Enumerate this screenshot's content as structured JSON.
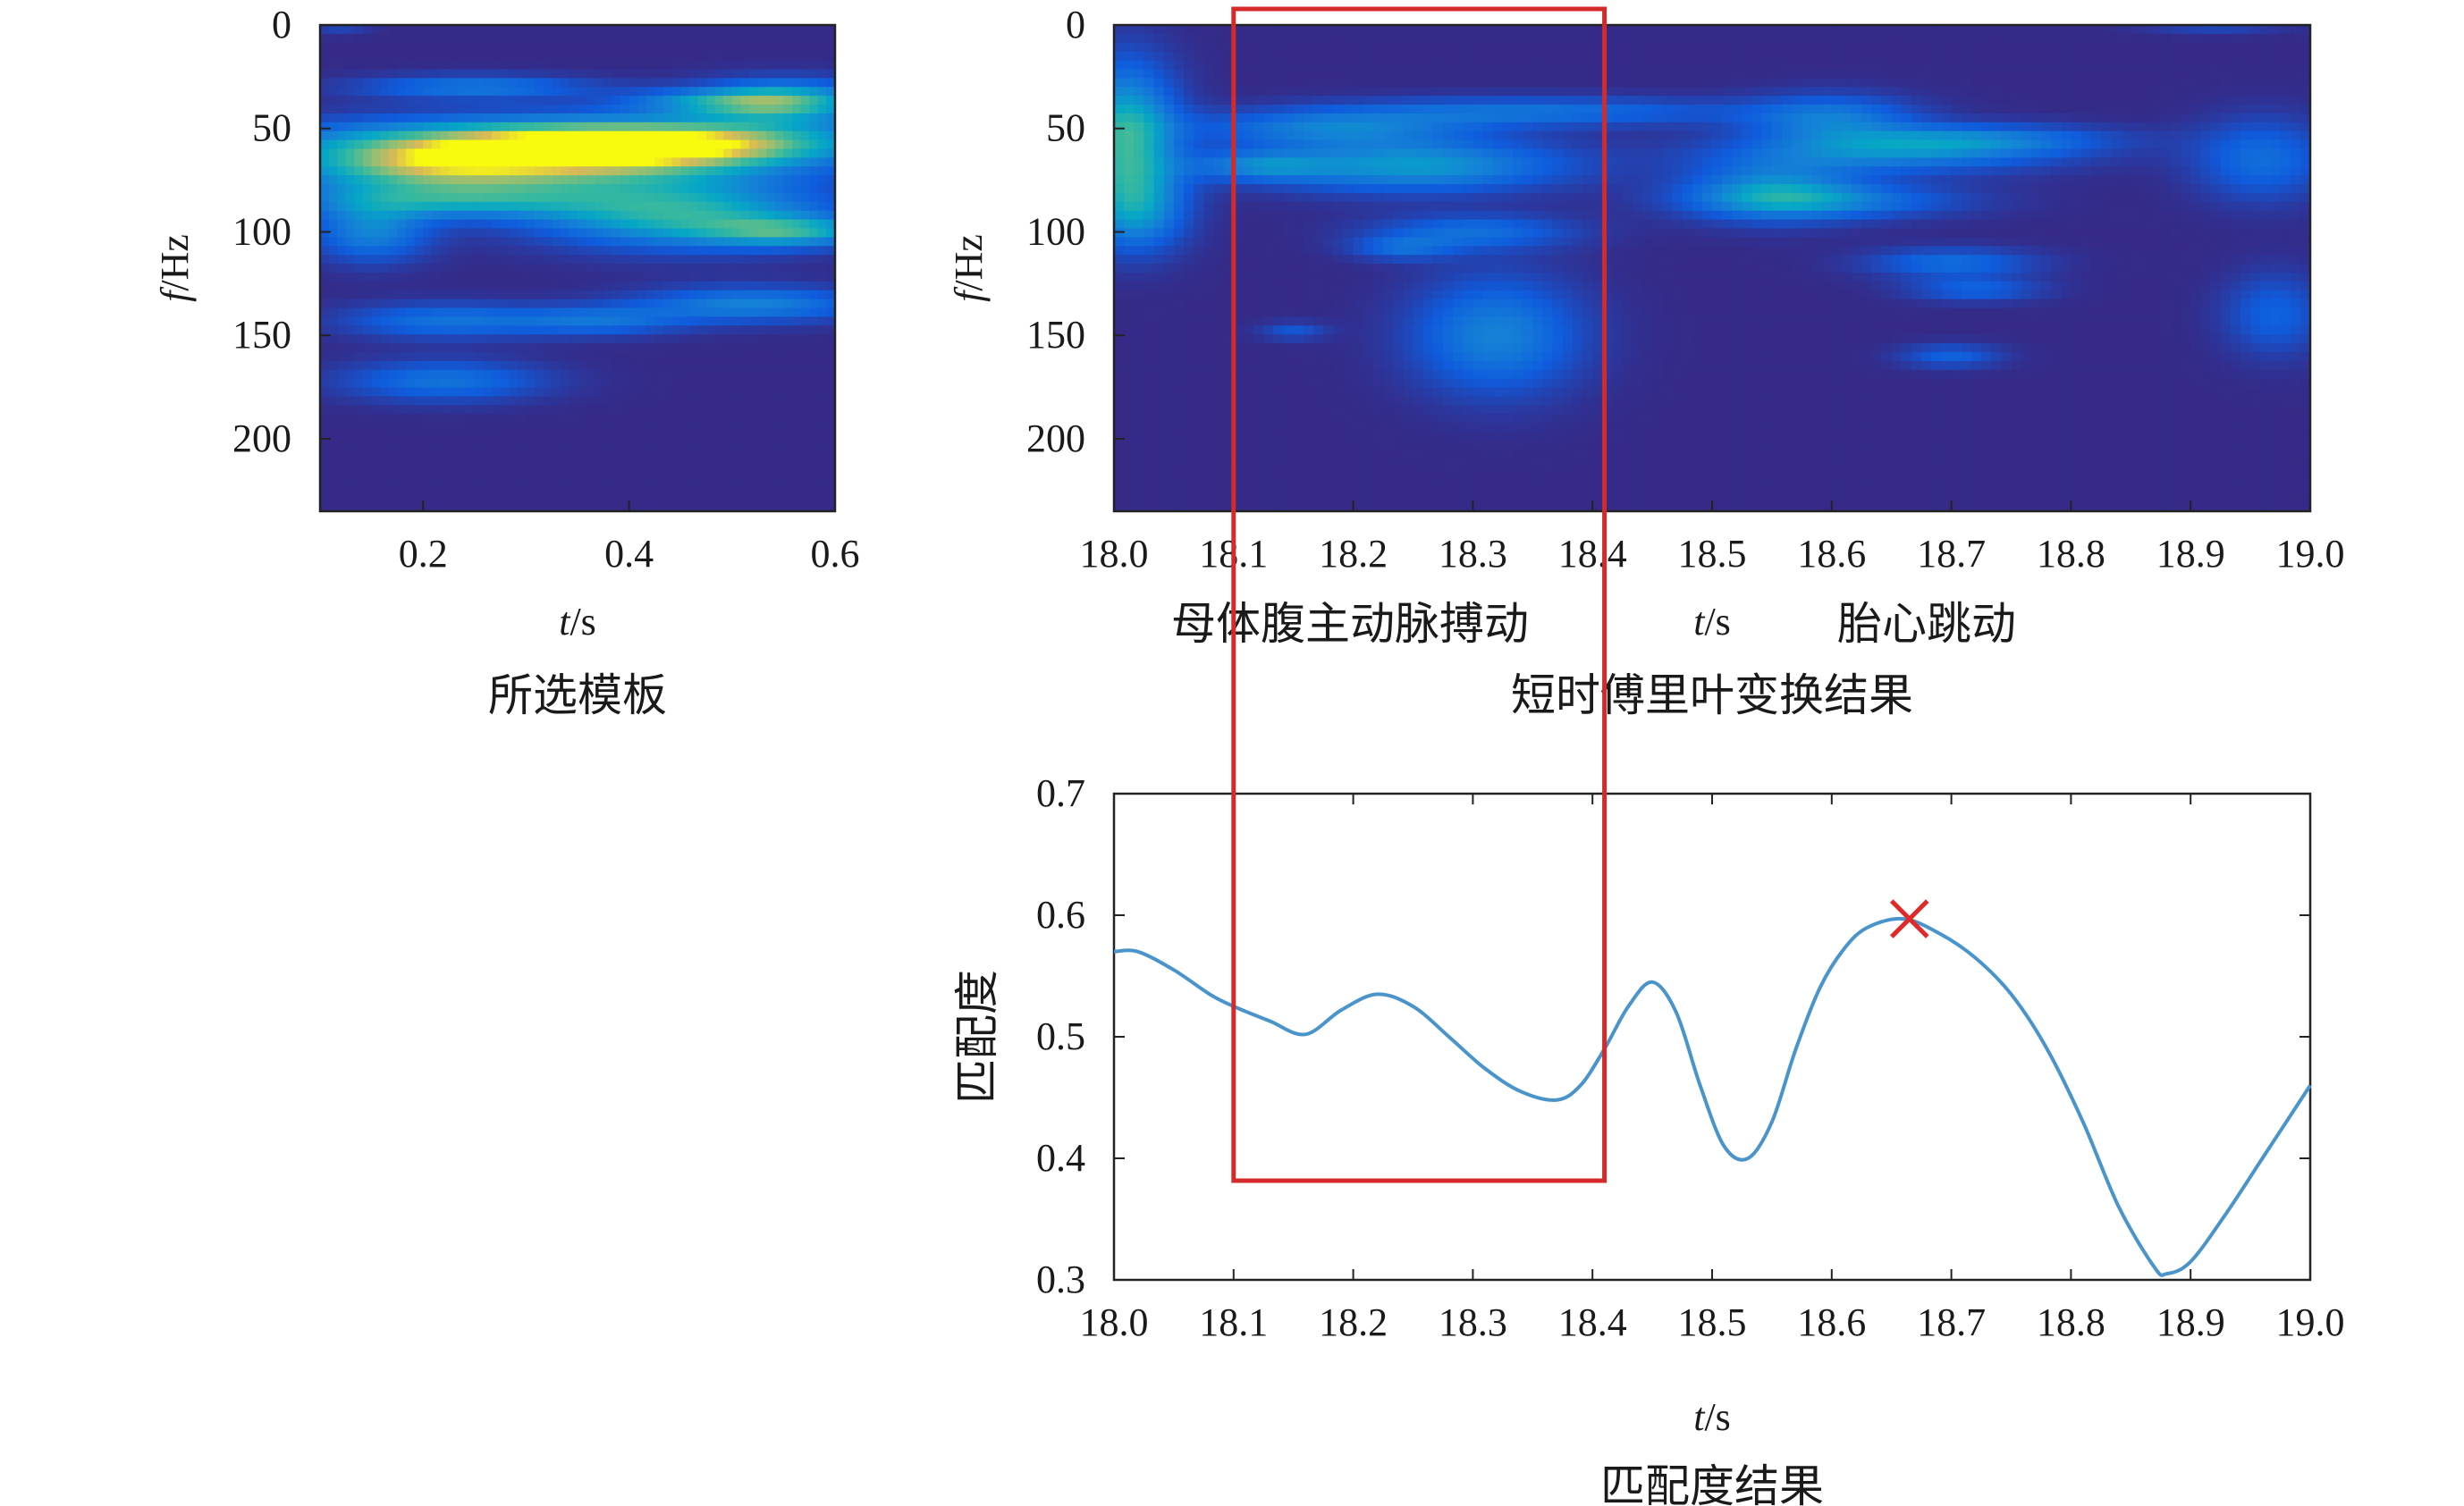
{
  "chart_data": [
    {
      "type": "heatmap",
      "caption": "所选模板",
      "xlabel_italic": "t",
      "xlabel_unit": "/s",
      "ylabel_italic": "f",
      "ylabel_unit": "/Hz",
      "xlim": [
        0.1,
        0.6
      ],
      "ylim": [
        0,
        235
      ],
      "y_inverted": true,
      "xticks": [
        0.2,
        0.4,
        0.6
      ],
      "xtick_labels": [
        "0.2",
        "0.4",
        "0.6"
      ],
      "yticks": [
        0,
        50,
        100,
        150,
        200
      ],
      "ytick_labels": [
        "0",
        "50",
        "100",
        "150",
        "200"
      ],
      "colormap": "parula",
      "background_color": "#352a87",
      "blobs": [
        {
          "t": 0.3,
          "f": 65,
          "dt": 0.16,
          "df": 12,
          "v": 0.75
        },
        {
          "t": 0.2,
          "f": 68,
          "dt": 0.08,
          "df": 8,
          "v": 0.3
        },
        {
          "t": 0.45,
          "f": 58,
          "dt": 0.12,
          "df": 8,
          "v": 0.55
        },
        {
          "t": 0.35,
          "f": 55,
          "dt": 0.2,
          "df": 7,
          "v": 0.3
        },
        {
          "t": 0.55,
          "f": 37,
          "dt": 0.06,
          "df": 7,
          "v": 0.65
        },
        {
          "t": 0.47,
          "f": 37,
          "dt": 0.06,
          "df": 4,
          "v": 0.3
        },
        {
          "t": 0.45,
          "f": 92,
          "dt": 0.1,
          "df": 11,
          "v": 0.6
        },
        {
          "t": 0.56,
          "f": 100,
          "dt": 0.06,
          "df": 5,
          "v": 0.45
        },
        {
          "t": 0.22,
          "f": 85,
          "dt": 0.1,
          "df": 6,
          "v": 0.4
        },
        {
          "t": 0.15,
          "f": 100,
          "dt": 0.04,
          "df": 10,
          "v": 0.4
        },
        {
          "t": 0.25,
          "f": 30,
          "dt": 0.08,
          "df": 4,
          "v": 0.35
        },
        {
          "t": 0.52,
          "f": 135,
          "dt": 0.08,
          "df": 6,
          "v": 0.4
        },
        {
          "t": 0.22,
          "f": 143,
          "dt": 0.07,
          "df": 6,
          "v": 0.32
        },
        {
          "t": 0.37,
          "f": 143,
          "dt": 0.06,
          "df": 5,
          "v": 0.3
        },
        {
          "t": 0.22,
          "f": 172,
          "dt": 0.07,
          "df": 7,
          "v": 0.33
        },
        {
          "t": 0.12,
          "f": 0,
          "dt": 0.02,
          "df": 3,
          "v": 0.15
        }
      ]
    },
    {
      "type": "heatmap",
      "caption": "短时傅里叶变换结果",
      "xlabel_italic": "t",
      "xlabel_unit": "/s",
      "ylabel_italic": "f",
      "ylabel_unit": "/Hz",
      "xlim": [
        18.0,
        19.0
      ],
      "ylim": [
        0,
        235
      ],
      "y_inverted": true,
      "xticks": [
        18.0,
        18.1,
        18.2,
        18.3,
        18.4,
        18.5,
        18.6,
        18.7,
        18.8,
        18.9,
        19.0
      ],
      "xtick_labels": [
        "18.0",
        "18.1",
        "18.2",
        "18.3",
        "18.4",
        "18.5",
        "18.6",
        "18.7",
        "18.8",
        "18.9",
        "19.0"
      ],
      "yticks": [
        0,
        50,
        100,
        150,
        200
      ],
      "ytick_labels": [
        "0",
        "50",
        "100",
        "150",
        "200"
      ],
      "annotations": [
        {
          "text": "母体腹主动脉搏动",
          "t": 18.2
        },
        {
          "text": "胎心跳动",
          "t": 18.68
        }
      ],
      "colormap": "parula",
      "background_color": "#352a87",
      "blobs": [
        {
          "t": 18.01,
          "f": 55,
          "dt": 0.03,
          "df": 25,
          "v": 0.65
        },
        {
          "t": 18.02,
          "f": 90,
          "dt": 0.03,
          "df": 14,
          "v": 0.35
        },
        {
          "t": 18.25,
          "f": 68,
          "dt": 0.09,
          "df": 9,
          "v": 0.5
        },
        {
          "t": 18.18,
          "f": 50,
          "dt": 0.08,
          "df": 6,
          "v": 0.35
        },
        {
          "t": 18.12,
          "f": 68,
          "dt": 0.04,
          "df": 5,
          "v": 0.3
        },
        {
          "t": 18.35,
          "f": 42,
          "dt": 0.12,
          "df": 5,
          "v": 0.32
        },
        {
          "t": 18.3,
          "f": 100,
          "dt": 0.06,
          "df": 6,
          "v": 0.3
        },
        {
          "t": 18.24,
          "f": 108,
          "dt": 0.03,
          "df": 4,
          "v": 0.25
        },
        {
          "t": 18.32,
          "f": 150,
          "dt": 0.05,
          "df": 20,
          "v": 0.4
        },
        {
          "t": 18.15,
          "f": 148,
          "dt": 0.02,
          "df": 3,
          "v": 0.2
        },
        {
          "t": 18.55,
          "f": 80,
          "dt": 0.05,
          "df": 10,
          "v": 0.4
        },
        {
          "t": 18.6,
          "f": 45,
          "dt": 0.05,
          "df": 8,
          "v": 0.35
        },
        {
          "t": 18.65,
          "f": 62,
          "dt": 0.1,
          "df": 7,
          "v": 0.38
        },
        {
          "t": 18.6,
          "f": 85,
          "dt": 0.08,
          "df": 6,
          "v": 0.32
        },
        {
          "t": 18.72,
          "f": 55,
          "dt": 0.08,
          "df": 5,
          "v": 0.3
        },
        {
          "t": 18.7,
          "f": 115,
          "dt": 0.05,
          "df": 5,
          "v": 0.3
        },
        {
          "t": 18.72,
          "f": 128,
          "dt": 0.04,
          "df": 4,
          "v": 0.25
        },
        {
          "t": 18.7,
          "f": 160,
          "dt": 0.03,
          "df": 4,
          "v": 0.25
        },
        {
          "t": 18.96,
          "f": 65,
          "dt": 0.04,
          "df": 14,
          "v": 0.3
        },
        {
          "t": 18.97,
          "f": 140,
          "dt": 0.03,
          "df": 14,
          "v": 0.25
        },
        {
          "t": 18.92,
          "f": 0,
          "dt": 0.04,
          "df": 3,
          "v": 0.15
        }
      ]
    },
    {
      "type": "line",
      "caption": "匹配度结果",
      "xlabel_italic": "t",
      "xlabel_unit": "/s",
      "ylabel": "匹配度",
      "xlim": [
        18.0,
        19.0
      ],
      "ylim": [
        0.3,
        0.7
      ],
      "xticks": [
        18.0,
        18.1,
        18.2,
        18.3,
        18.4,
        18.5,
        18.6,
        18.7,
        18.8,
        18.9,
        19.0
      ],
      "xtick_labels": [
        "18.0",
        "18.1",
        "18.2",
        "18.3",
        "18.4",
        "18.5",
        "18.6",
        "18.7",
        "18.8",
        "18.9",
        "19.0"
      ],
      "yticks": [
        0.3,
        0.4,
        0.5,
        0.6,
        0.7
      ],
      "ytick_labels": [
        "0.3",
        "0.4",
        "0.5",
        "0.6",
        "0.7"
      ],
      "line_color": "#4a94cc",
      "x": [
        18.0,
        18.02,
        18.05,
        18.08,
        18.1,
        18.13,
        18.16,
        18.19,
        18.22,
        18.25,
        18.28,
        18.31,
        18.34,
        18.37,
        18.39,
        18.41,
        18.43,
        18.45,
        18.47,
        18.49,
        18.51,
        18.53,
        18.55,
        18.57,
        18.59,
        18.61,
        18.63,
        18.66,
        18.69,
        18.72,
        18.75,
        18.78,
        18.81,
        18.84,
        18.87,
        18.88,
        18.9,
        18.93,
        18.96,
        19.0
      ],
      "y": [
        0.57,
        0.57,
        0.555,
        0.535,
        0.525,
        0.513,
        0.502,
        0.522,
        0.535,
        0.525,
        0.5,
        0.474,
        0.455,
        0.448,
        0.46,
        0.49,
        0.525,
        0.545,
        0.52,
        0.46,
        0.41,
        0.4,
        0.43,
        0.49,
        0.54,
        0.572,
        0.59,
        0.597,
        0.585,
        0.565,
        0.535,
        0.49,
        0.43,
        0.36,
        0.31,
        0.305,
        0.315,
        0.355,
        0.4,
        0.46
      ],
      "peak_marker": {
        "x": 18.665,
        "y": 0.597,
        "color": "#e02a2a"
      }
    }
  ],
  "highlight_box": {
    "x": [
      18.1,
      18.41
    ],
    "color": "#d42a2a"
  }
}
